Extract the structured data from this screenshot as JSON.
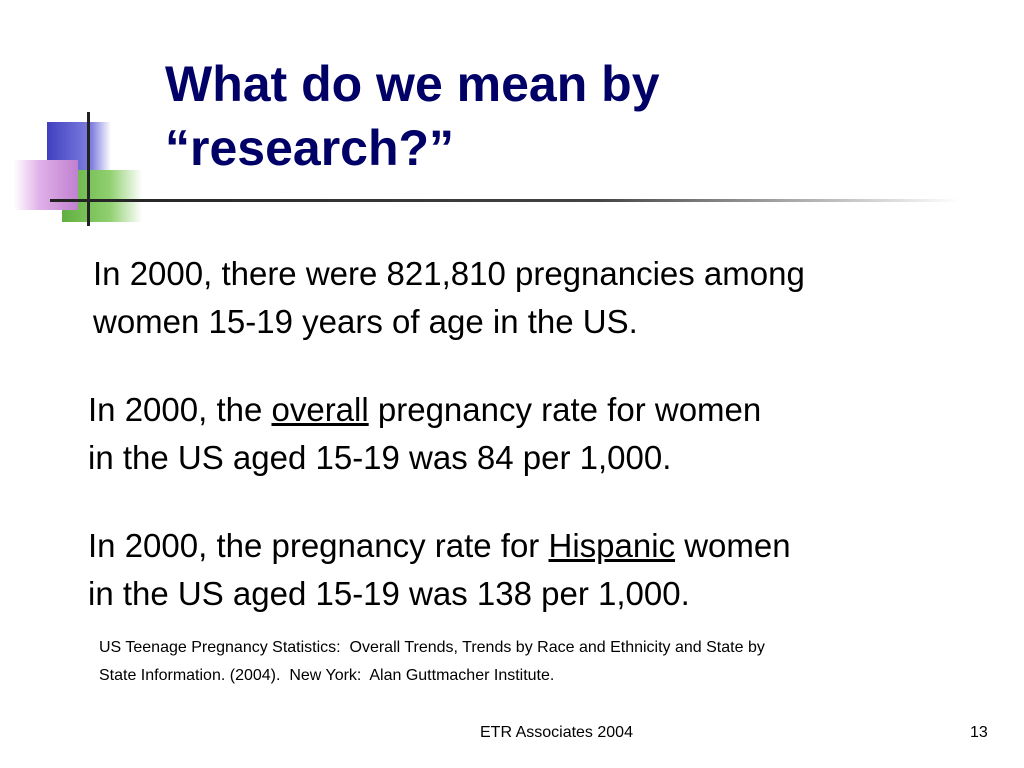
{
  "slide": {
    "title_lines": [
      "What do we mean by",
      "“research?”"
    ],
    "paragraphs": [
      {
        "lines": [
          [
            {
              "text": "In 2000, there were 821,810 pregnancies among"
            }
          ],
          [
            {
              "text": "women 15-19 years of age in the US."
            }
          ]
        ]
      },
      {
        "lines": [
          [
            {
              "text": "In 2000, the "
            },
            {
              "text": "overall",
              "underline": true
            },
            {
              "text": " pregnancy rate for women"
            }
          ],
          [
            {
              "text": "in the US aged 15-19 was 84 per 1,000."
            }
          ]
        ]
      },
      {
        "lines": [
          [
            {
              "text": "In 2000, the pregnancy rate for "
            },
            {
              "text": "Hispanic",
              "underline": true
            },
            {
              "text": " women"
            }
          ],
          [
            {
              "text": "in the US aged 15-19 was 138 per 1,000."
            }
          ]
        ]
      }
    ],
    "citation_lines": [
      "US Teenage Pregnancy Statistics:  Overall Trends, Trends by Race and Ethnicity and State by",
      "State Information. (2004).  New York:  Alan Guttmacher Institute."
    ],
    "footer": "ETR Associates 2004",
    "page_number": "13"
  }
}
